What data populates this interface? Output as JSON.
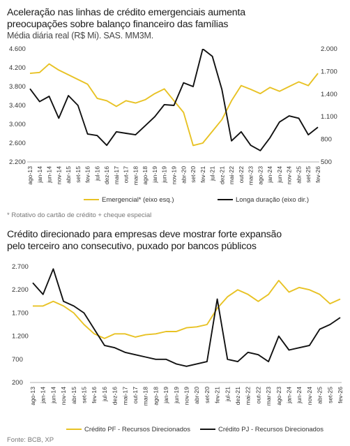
{
  "chart1": {
    "title_line1": "Aceleração nas linhas de crédito emergenciais aumenta",
    "title_line2": "preocupações sobre balanço financeiro das famílias",
    "subtitle": "Média diária real (R$ Mi). SAS. MM3M.",
    "footnote": "* Rotativo do cartão de crédito + cheque especial",
    "chart_data": {
      "type": "line",
      "x_labels": [
        "ago-13",
        "jan-14",
        "jun-14",
        "nov-14",
        "abr-15",
        "set-15",
        "fev-16",
        "jul-16",
        "dez-16",
        "mai-17",
        "out-17",
        "mar-18",
        "ago-18",
        "jan-19",
        "jun-19",
        "nov-19",
        "abr-20",
        "set-20",
        "fev-21",
        "jul-21",
        "dez-21",
        "mai-22",
        "out-22",
        "mar-23",
        "ago-23",
        "jan-24",
        "jun-24",
        "nov-24",
        "abr-25",
        "set-25",
        "fev-26"
      ],
      "y_left_ticks": [
        "4.600",
        "4.200",
        "3.800",
        "3.400",
        "3.000",
        "2.600",
        "2.200"
      ],
      "y_left_range": [
        2200,
        4600
      ],
      "y_right_ticks": [
        "2.000",
        "1.700",
        "1.400",
        "1.100",
        "800",
        "500"
      ],
      "y_right_range": [
        500,
        2000
      ],
      "grid": false,
      "legend_position": "bottom",
      "series": [
        {
          "name": "Emergencial* (eixo esq.)",
          "axis": "left",
          "color": "#E8C224",
          "values": [
            4080,
            4100,
            4280,
            4150,
            4050,
            3950,
            3850,
            3550,
            3500,
            3380,
            3500,
            3450,
            3520,
            3650,
            3750,
            3500,
            3250,
            2550,
            2600,
            2850,
            3100,
            3500,
            3820,
            3740,
            3650,
            3780,
            3700,
            3800,
            3900,
            3820,
            4080
          ]
        },
        {
          "name": "Longa duração (eixo dir.)",
          "axis": "right",
          "color": "#111111",
          "values": [
            1470,
            1300,
            1370,
            1080,
            1380,
            1250,
            870,
            850,
            720,
            900,
            880,
            860,
            980,
            1100,
            1260,
            1250,
            1550,
            1500,
            2000,
            1900,
            1460,
            780,
            900,
            720,
            650,
            820,
            1030,
            1110,
            1080,
            860,
            960
          ]
        }
      ]
    }
  },
  "chart2": {
    "title_line1": "Crédito direcionado para empresas deve mostrar forte expansão",
    "title_line2": "pelo terceiro ano consecutivo, puxado por bancos públicos",
    "chart_data": {
      "type": "line",
      "x_labels": [
        "ago-13",
        "jan-14",
        "jun-14",
        "nov-14",
        "abr-15",
        "set-15",
        "fev-16",
        "jul-16",
        "dez-16",
        "mai-17",
        "out-17",
        "mar-18",
        "ago-18",
        "jan-19",
        "jun-19",
        "nov-19",
        "abr-20",
        "set-20",
        "fev-21",
        "jul-21",
        "dez-21",
        "mai-22",
        "out-22",
        "mar-23",
        "ago-23",
        "jan-24",
        "jun-24",
        "nov-24",
        "abr-25",
        "set-25",
        "fev-26"
      ],
      "y_ticks": [
        "2.700",
        "2.200",
        "1.700",
        "1.200",
        "700",
        "200"
      ],
      "y_range": [
        200,
        2700
      ],
      "grid": false,
      "legend_position": "bottom",
      "series": [
        {
          "name": "Crédito PF - Recursos Direcionados",
          "color": "#E8C224",
          "values": [
            1850,
            1850,
            1950,
            1850,
            1700,
            1450,
            1250,
            1150,
            1250,
            1250,
            1180,
            1230,
            1250,
            1300,
            1300,
            1380,
            1400,
            1450,
            1800,
            2050,
            2200,
            2100,
            1950,
            2100,
            2400,
            2150,
            2250,
            2200,
            2100,
            1900,
            2000
          ]
        },
        {
          "name": "Crédito PJ - Recursos Direcionados",
          "color": "#111111",
          "values": [
            2350,
            2100,
            2650,
            1950,
            1850,
            1700,
            1350,
            1000,
            950,
            850,
            800,
            750,
            700,
            700,
            600,
            550,
            600,
            650,
            2000,
            700,
            650,
            850,
            800,
            650,
            1200,
            900,
            950,
            1000,
            1350,
            1450,
            1600
          ]
        }
      ]
    }
  },
  "source": "Fonte: BCB, XP"
}
